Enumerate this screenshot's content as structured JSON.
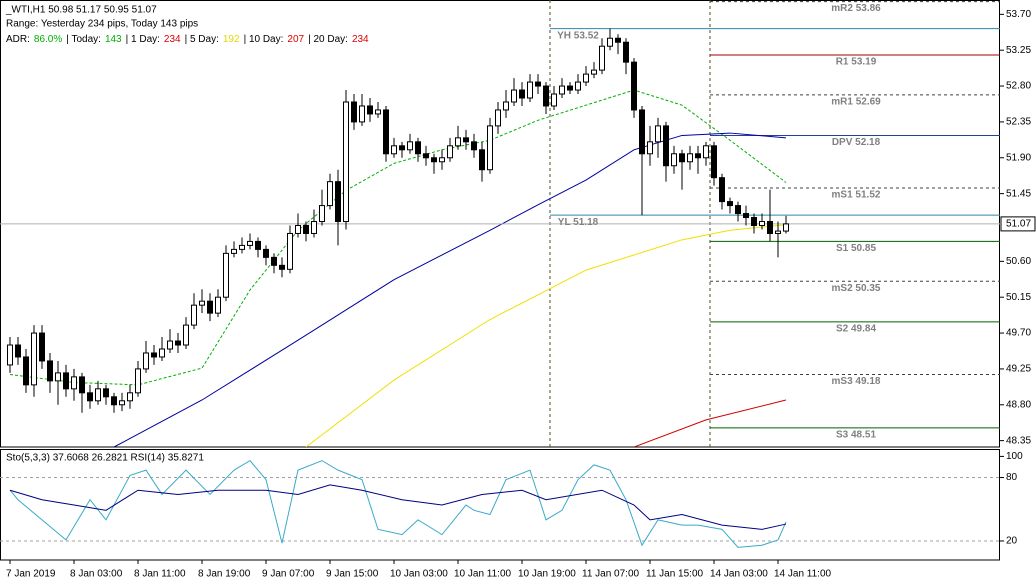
{
  "chart_data": [
    {
      "type": "candlestick",
      "title": "_WTI,H1  50.98 51.17 50.95 51.07",
      "subtitle": "Range: Yesterday 234 pips, Today 143 pips",
      "adr": [
        {
          "text": "ADR:",
          "color": "#000000"
        },
        {
          "text": "86.0%",
          "color": "#00b000"
        },
        {
          "text": "| Today:",
          "color": "#000000"
        },
        {
          "text": "143",
          "color": "#00b000"
        },
        {
          "text": "| 1 Day:",
          "color": "#000000"
        },
        {
          "text": "234",
          "color": "#e00000"
        },
        {
          "text": "| 5 Day:",
          "color": "#000000"
        },
        {
          "text": "192",
          "color": "#e0d800"
        },
        {
          "text": "| 10 Day:",
          "color": "#000000"
        },
        {
          "text": "207",
          "color": "#e00000"
        },
        {
          "text": "| 20 Day:",
          "color": "#000000"
        },
        {
          "text": "234",
          "color": "#e00000"
        }
      ],
      "categories": [
        "7 Jan 2019",
        null,
        null,
        null,
        null,
        null,
        null,
        null,
        "8 Jan 03:00",
        null,
        null,
        null,
        null,
        null,
        null,
        null,
        "8 Jan 11:00",
        null,
        null,
        null,
        null,
        null,
        null,
        null,
        "8 Jan 19:00",
        null,
        null,
        null,
        null,
        null,
        null,
        null,
        "9 Jan 07:00",
        null,
        null,
        null,
        null,
        null,
        null,
        null,
        "9 Jan 15:00",
        null,
        null,
        null,
        null,
        null,
        null,
        null,
        "10 Jan 03:00",
        null,
        null,
        null,
        null,
        null,
        null,
        null,
        "10 Jan 11:00",
        null,
        null,
        null,
        null,
        null,
        null,
        null,
        "10 Jan 19:00",
        null,
        null,
        null,
        null,
        null,
        null,
        null,
        "11 Jan 07:00",
        null,
        null,
        null,
        null,
        null,
        null,
        null,
        "11 Jan 15:00",
        null,
        null,
        null,
        null,
        null,
        null,
        null,
        "14 Jan 03:00",
        null,
        null,
        null,
        null,
        null,
        null,
        null,
        "14 Jan 11:00",
        null
      ],
      "open": [
        49.3,
        49.55,
        49.4,
        49.05,
        49.7,
        49.35,
        49.1,
        49.2,
        49.0,
        49.15,
        48.95,
        48.85,
        49.0,
        48.9,
        48.8,
        48.85,
        48.95,
        49.25,
        49.45,
        49.4,
        49.5,
        49.6,
        49.55,
        49.8,
        50.05,
        50.1,
        49.95,
        50.15,
        50.7,
        50.75,
        50.8,
        50.85,
        50.75,
        50.65,
        50.55,
        50.5,
        50.95,
        51.05,
        50.95,
        51.1,
        51.3,
        51.6,
        51.1,
        52.6,
        52.35,
        52.55,
        52.45,
        52.5,
        51.95,
        52.05,
        52.0,
        52.1,
        51.95,
        51.9,
        51.85,
        51.9,
        52.05,
        52.15,
        52.1,
        52.0,
        51.75,
        52.3,
        52.5,
        52.6,
        52.75,
        52.65,
        52.85,
        52.8,
        52.55,
        52.7,
        52.8,
        52.75,
        52.85,
        52.95,
        53.0,
        53.3,
        53.4,
        53.35,
        53.1,
        52.5,
        51.95,
        52.1,
        52.3,
        51.8,
        51.95,
        51.85,
        51.95,
        51.9,
        52.05,
        51.65,
        51.35,
        51.3,
        51.2,
        51.15,
        51.05,
        51.1,
        50.95,
        50.98
      ],
      "high": [
        49.65,
        49.65,
        49.5,
        49.8,
        49.8,
        49.45,
        49.35,
        49.3,
        49.25,
        49.2,
        49.05,
        49.1,
        49.05,
        48.95,
        48.95,
        49.05,
        49.35,
        49.6,
        49.55,
        49.65,
        49.75,
        49.7,
        49.9,
        50.2,
        50.25,
        50.2,
        50.25,
        50.8,
        50.85,
        50.9,
        50.95,
        50.9,
        50.8,
        50.7,
        50.65,
        51.05,
        51.2,
        51.1,
        51.25,
        51.5,
        51.7,
        51.75,
        52.75,
        52.7,
        52.7,
        52.65,
        52.6,
        52.55,
        52.15,
        52.1,
        52.2,
        52.15,
        52.05,
        51.95,
        52.0,
        52.15,
        52.3,
        52.25,
        52.2,
        52.1,
        52.4,
        52.6,
        52.75,
        52.9,
        52.85,
        52.95,
        52.95,
        52.85,
        52.8,
        52.9,
        52.85,
        52.95,
        53.05,
        53.1,
        53.4,
        53.52,
        53.45,
        53.4,
        53.15,
        52.55,
        52.3,
        52.4,
        52.35,
        52.05,
        52.0,
        52.05,
        52.05,
        52.1,
        52.1,
        51.7,
        51.4,
        51.35,
        51.3,
        51.2,
        51.2,
        51.5,
        51.1,
        51.17
      ],
      "low": [
        49.2,
        49.3,
        48.95,
        48.9,
        49.25,
        48.95,
        48.8,
        48.9,
        48.85,
        48.7,
        48.75,
        48.8,
        48.8,
        48.7,
        48.72,
        48.75,
        48.9,
        49.2,
        49.3,
        49.35,
        49.45,
        49.45,
        49.5,
        49.75,
        49.95,
        49.85,
        49.9,
        50.1,
        50.65,
        50.7,
        50.75,
        50.65,
        50.55,
        50.45,
        50.4,
        50.45,
        50.9,
        50.85,
        50.9,
        51.05,
        51.25,
        50.8,
        51.0,
        52.25,
        52.3,
        52.35,
        52.4,
        51.85,
        51.9,
        51.9,
        51.95,
        51.85,
        51.8,
        51.7,
        51.75,
        51.85,
        52.0,
        52.0,
        51.9,
        51.6,
        51.7,
        52.2,
        52.4,
        52.55,
        52.55,
        52.6,
        52.7,
        52.45,
        52.5,
        52.65,
        52.7,
        52.7,
        52.8,
        52.9,
        52.95,
        53.25,
        53.2,
        52.95,
        52.4,
        51.18,
        51.8,
        51.9,
        51.6,
        51.7,
        51.5,
        51.75,
        51.7,
        51.8,
        51.55,
        51.25,
        51.2,
        51.1,
        51.05,
        50.95,
        51.0,
        50.85,
        50.65,
        50.95
      ],
      "close": [
        49.55,
        49.4,
        49.05,
        49.7,
        49.35,
        49.1,
        49.2,
        49.0,
        49.15,
        48.95,
        48.85,
        49.0,
        48.9,
        48.8,
        48.85,
        48.95,
        49.25,
        49.45,
        49.4,
        49.5,
        49.6,
        49.55,
        49.8,
        50.05,
        50.1,
        49.95,
        50.15,
        50.7,
        50.75,
        50.8,
        50.85,
        50.75,
        50.65,
        50.55,
        50.5,
        50.95,
        51.05,
        50.95,
        51.1,
        51.3,
        51.6,
        51.1,
        52.6,
        52.35,
        52.55,
        52.45,
        52.5,
        51.95,
        52.05,
        52.0,
        52.1,
        51.95,
        51.9,
        51.85,
        51.9,
        52.05,
        52.15,
        52.1,
        52.0,
        51.75,
        52.3,
        52.5,
        52.6,
        52.75,
        52.65,
        52.85,
        52.8,
        52.55,
        52.7,
        52.8,
        52.75,
        52.85,
        52.95,
        53.0,
        53.3,
        53.4,
        53.35,
        53.1,
        52.5,
        51.95,
        52.1,
        52.3,
        51.8,
        51.95,
        51.85,
        51.95,
        51.9,
        52.05,
        51.65,
        51.35,
        51.3,
        51.2,
        51.15,
        51.05,
        51.1,
        50.95,
        50.98,
        51.07
      ],
      "up_color": "#ffffff",
      "down_color": "#000000",
      "ylim": [
        48.27,
        53.88
      ],
      "yticks": [
        {
          "value": 53.7,
          "label": "53.70"
        },
        53.25,
        {
          "value": 52.8,
          "label": "52.80"
        },
        52.35,
        {
          "value": 51.9,
          "label": "51.90"
        },
        51.45,
        {
          "value": 50.6,
          "label": "50.60"
        },
        50.15,
        {
          "value": 49.7,
          "label": "49.70"
        },
        49.25,
        {
          "value": 48.8,
          "label": "48.80"
        },
        48.35
      ],
      "last_price": 51.07,
      "overlays": [
        {
          "color": "#00b000",
          "dash": true,
          "x": [
            0,
            8,
            16,
            24,
            30,
            36,
            42,
            48,
            54,
            60,
            66,
            72,
            78,
            84,
            90,
            97
          ],
          "values": [
            49.18,
            49.08,
            49.05,
            49.26,
            50.24,
            50.99,
            51.49,
            51.83,
            52.0,
            52.12,
            52.37,
            52.56,
            52.75,
            52.56,
            52.12,
            51.59
          ]
        },
        {
          "color": "#0000a0",
          "dash": false,
          "x": [
            13,
            24,
            36,
            48,
            60,
            66,
            72,
            78,
            84,
            90,
            97
          ],
          "values": [
            48.27,
            48.86,
            49.61,
            50.37,
            50.99,
            51.31,
            51.62,
            52.0,
            52.18,
            52.21,
            52.15
          ]
        },
        {
          "color": "#f0e000",
          "dash": false,
          "x": [
            37,
            48,
            60,
            72,
            84,
            90,
            97
          ],
          "values": [
            48.27,
            49.11,
            49.87,
            50.49,
            50.87,
            50.99,
            51.06
          ]
        },
        {
          "color": "#d00000",
          "dash": false,
          "x": [
            78,
            87,
            97
          ],
          "values": [
            48.27,
            48.61,
            48.86
          ]
        }
      ],
      "yesterday_levels": [
        {
          "label": "YH 53.52",
          "value": 53.52,
          "color": "#2e86a8",
          "dash": false
        },
        {
          "label": "YL 51.18",
          "value": 51.18,
          "color": "#2e86a8",
          "dash": false
        }
      ],
      "pivot_levels": [
        {
          "label": "mR2 53.86",
          "value": 53.86,
          "color": "#404040",
          "dash": true
        },
        {
          "label": "R1 53.19",
          "value": 53.19,
          "color": "#a00000",
          "dash": false
        },
        {
          "label": "mR1 52.69",
          "value": 52.69,
          "color": "#404040",
          "dash": true
        },
        {
          "label": "DPV 52.18",
          "value": 52.18,
          "color": "#2040a0",
          "dash": false
        },
        {
          "label": "mS1 51.52",
          "value": 51.52,
          "color": "#404040",
          "dash": true
        },
        {
          "label": "S1 50.85",
          "value": 50.85,
          "color": "#006000",
          "dash": false
        },
        {
          "label": "mS2 50.35",
          "value": 50.35,
          "color": "#404040",
          "dash": true
        },
        {
          "label": "S2 49.84",
          "value": 49.84,
          "color": "#006000",
          "dash": false
        },
        {
          "label": "mS3 49.18",
          "value": 49.18,
          "color": "#404040",
          "dash": true
        },
        {
          "label": "S3 48.51",
          "value": 48.51,
          "color": "#006000",
          "dash": false
        }
      ]
    },
    {
      "type": "line",
      "title": "Sto(5,3,3) 37.6068 26.2821 RSI(14) 35.8271",
      "ylim": [
        2,
        107
      ],
      "yticks": [
        100,
        80,
        20
      ],
      "levels": [
        80,
        20
      ],
      "series": [
        {
          "color": "#3aaac8",
          "x": [
            0,
            1,
            4,
            7,
            10,
            12,
            15,
            17,
            19,
            22,
            25,
            28,
            30,
            32,
            34,
            36,
            39,
            41,
            44,
            46,
            49,
            51,
            54,
            57,
            58,
            60,
            62,
            65,
            67,
            69,
            71,
            73,
            75,
            77,
            79,
            81,
            84,
            86,
            89,
            91,
            94,
            96,
            97
          ],
          "values": [
            68,
            59,
            40,
            21,
            59,
            40,
            82,
            87,
            64,
            87,
            64,
            87,
            96,
            78,
            18,
            87,
            96,
            87,
            78,
            31,
            26,
            40,
            26,
            54,
            49,
            45,
            78,
            87,
            40,
            49,
            78,
            92,
            87,
            59,
            16,
            40,
            35,
            35,
            31,
            14,
            16,
            21,
            38
          ]
        },
        {
          "color": "#000080",
          "x": [
            0,
            4,
            8,
            12,
            16,
            21,
            26,
            32,
            36,
            40,
            44,
            49,
            54,
            59,
            64,
            67,
            74,
            78,
            80,
            84,
            89,
            94,
            97
          ],
          "values": [
            68,
            59,
            54,
            49,
            68,
            64,
            68,
            68,
            64,
            73,
            68,
            59,
            54,
            64,
            68,
            59,
            68,
            54,
            40,
            45,
            35,
            31,
            36
          ]
        }
      ]
    }
  ]
}
